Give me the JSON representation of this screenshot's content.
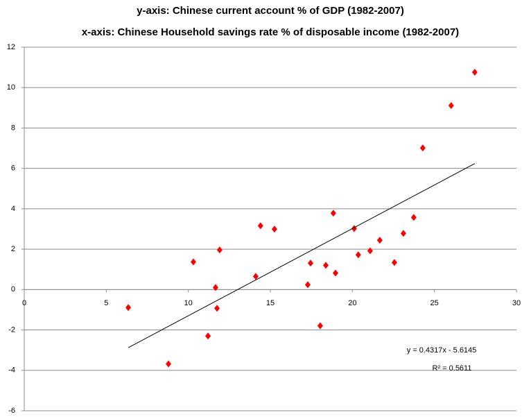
{
  "chart_data": {
    "type": "scatter",
    "title": "y-axis: Chinese current account % of GDP (1982-2007)",
    "subtitle": "x-axis: Chinese Household savings rate % of disposable income (1982-2007)",
    "series": [
      {
        "color": "#ff0000",
        "x": [
          6.34,
          8.79,
          10.31,
          11.2,
          11.66,
          11.75,
          11.91,
          14.11,
          14.4,
          15.25,
          17.28,
          17.45,
          18.04,
          18.38,
          18.84,
          18.97,
          20.11,
          20.36,
          21.08,
          21.67,
          22.56,
          23.11,
          23.74,
          24.29,
          26.02,
          27.46
        ],
        "values": [
          -0.89,
          -3.68,
          1.37,
          -2.3,
          0.1,
          -0.93,
          1.96,
          0.65,
          3.16,
          2.99,
          0.24,
          1.31,
          -1.79,
          1.2,
          3.78,
          0.82,
          3.02,
          1.72,
          1.92,
          2.44,
          1.34,
          2.78,
          3.57,
          7.01,
          9.11,
          10.76
        ]
      }
    ],
    "trendline": {
      "slope": 0.4317,
      "intercept": -5.6145,
      "equation": "y = 0.4317x - 5.6145",
      "r2": "R² = 0.5611",
      "color": "#000000"
    },
    "xlim": [
      0,
      30
    ],
    "xticks": [
      0,
      5,
      10,
      15,
      20,
      25,
      30
    ],
    "ylim": [
      -6,
      12
    ],
    "yticks": [
      -6,
      -4,
      -2,
      0,
      2,
      4,
      6,
      8,
      10,
      12
    ],
    "grid": true
  }
}
